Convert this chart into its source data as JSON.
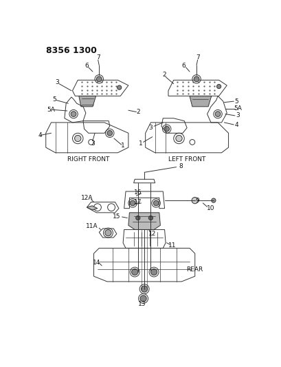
{
  "title_code": "8356 1300",
  "bg": "#ffffff",
  "lc": "#333333",
  "tc": "#111111",
  "right_front_label": "RIGHT FRONT",
  "left_front_label": "LEFT FRONT",
  "rear_label": "REAR"
}
